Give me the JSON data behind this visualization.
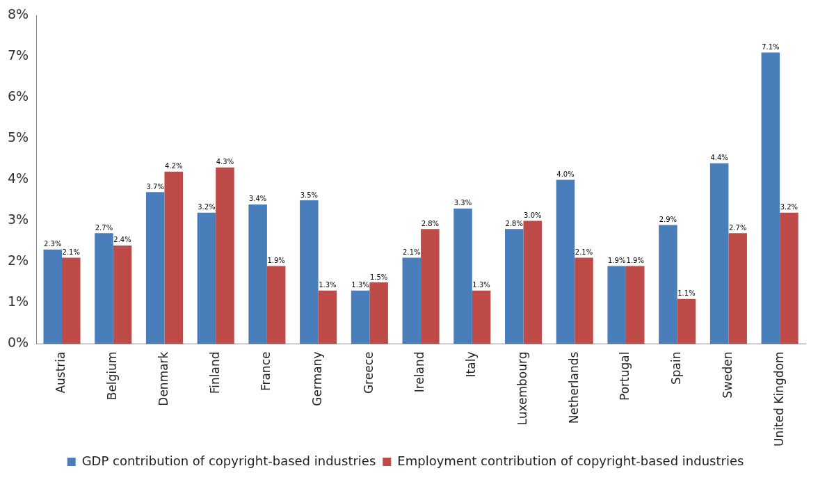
{
  "chart_data": {
    "type": "bar",
    "categories": [
      "Austria",
      "Belgium",
      "Denmark",
      "Finland",
      "France",
      "Germany",
      "Greece",
      "Ireland",
      "Italy",
      "Luxembourg",
      "Netherlands",
      "Portugal",
      "Spain",
      "Sweden",
      "United Kingdom"
    ],
    "series": [
      {
        "name": "GDP contribution of copyright-based industries",
        "color": "#4a7ebb",
        "values": [
          2.3,
          2.7,
          3.7,
          3.2,
          3.4,
          3.5,
          1.3,
          2.1,
          3.3,
          2.8,
          4.0,
          1.9,
          2.9,
          4.4,
          7.1
        ],
        "value_labels": [
          "2.3%",
          "2.7%",
          "3.7%",
          "3.2%",
          "3.4%",
          "3.5%",
          "1.3%",
          "2.1%",
          "3.3%",
          "2.8%",
          "4.0%",
          "1.9%",
          "2.9%",
          "4.4%",
          "7.1%"
        ]
      },
      {
        "name": "Employment contribution of copyright-based industries",
        "color": "#be4b48",
        "values": [
          2.1,
          2.4,
          4.2,
          4.3,
          1.9,
          1.3,
          1.5,
          2.8,
          1.3,
          3.0,
          2.1,
          1.9,
          1.1,
          2.7,
          3.2
        ],
        "value_labels": [
          "2.1%",
          "2.4%",
          "4.2%",
          "4.3%",
          "1.9%",
          "1.3%",
          "1.5%",
          "2.8%",
          "1.3%",
          "3.0%",
          "2.1%",
          "1.9%",
          "1.1%",
          "2.7%",
          "3.2%"
        ]
      }
    ],
    "ylim": [
      0,
      8
    ],
    "yticks": [
      {
        "value": 0,
        "label": "0%"
      },
      {
        "value": 1,
        "label": "1%"
      },
      {
        "value": 2,
        "label": "2%"
      },
      {
        "value": 3,
        "label": "3%"
      },
      {
        "value": 4,
        "label": "4%"
      },
      {
        "value": 5,
        "label": "5%"
      },
      {
        "value": 6,
        "label": "6%"
      },
      {
        "value": 7,
        "label": "7%"
      },
      {
        "value": 8,
        "label": "8%"
      }
    ],
    "grid": false,
    "legend": "bottom"
  }
}
